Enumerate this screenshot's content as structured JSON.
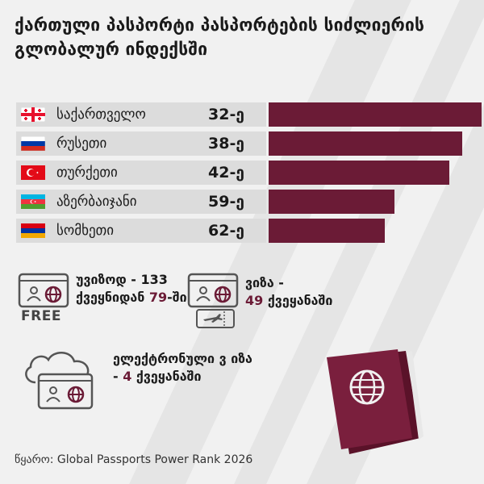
{
  "title": "ქართული პასპორტი პასპორტების სიძლიერის გლობალურ ინდექსში",
  "chart_data": {
    "type": "bar",
    "orientation": "horizontal",
    "categories": [
      "საქართველო",
      "რუსეთი",
      "თურქეთი",
      "აზერბაიჯანი",
      "სომხეთი"
    ],
    "rank_labels": [
      "32-ე",
      "38-ე",
      "42-ე",
      "59-ე",
      "62-ე"
    ],
    "values": [
      32,
      38,
      42,
      59,
      62
    ],
    "bar_color": "#6b1b36",
    "flags": [
      "georgia-flag",
      "russia-flag",
      "turkey-flag",
      "azerbaijan-flag",
      "armenia-flag"
    ]
  },
  "stats": {
    "visa_free": {
      "text": "უვიზოდ  - 133 ქვეყნიდან",
      "num": "79",
      "suffix": "-ში",
      "icon_label": "FREE"
    },
    "visa": {
      "text": "ვიზა -",
      "num": "49",
      "suffix": " ქვეყანაში"
    },
    "evisa": {
      "text": "ელექტრონული ვ იზა - ",
      "num": "4",
      "suffix": " ქვეყანაში"
    }
  },
  "source": "წყარო:  Global Passports Power  Rank 2026",
  "colors": {
    "accent": "#6b1b36",
    "background": "#f1f1f1",
    "band": "#dcdcdc"
  }
}
